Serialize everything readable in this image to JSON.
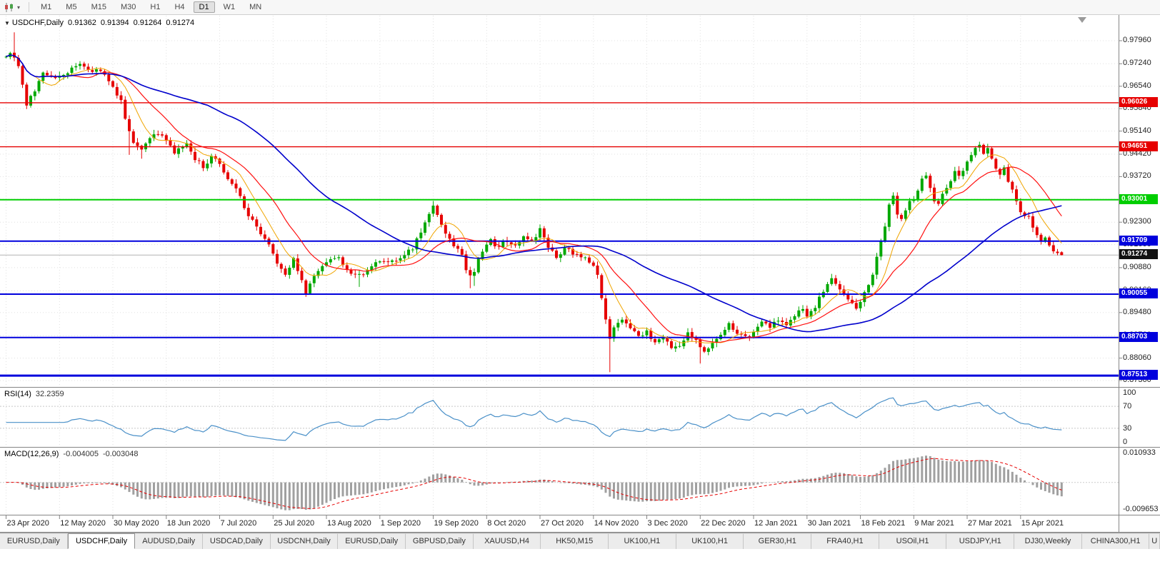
{
  "toolbar": {
    "timeframes": [
      "M1",
      "M5",
      "M15",
      "M30",
      "H1",
      "H4",
      "D1",
      "W1",
      "MN"
    ],
    "active_timeframe": "D1"
  },
  "chart": {
    "header_symbol": "USDCHF,Daily",
    "open": "0.91362",
    "high": "0.91394",
    "low": "0.91264",
    "close": "0.91274"
  },
  "colors": {
    "candle_up": "#00a800",
    "candle_down": "#e60000",
    "ma_fast": "#f0a500",
    "ma_mid": "#ff1010",
    "ma_slow": "#0000cc",
    "level_red": "#e60000",
    "level_green": "#00ce00",
    "level_blue": "#0000dd",
    "current_price_badge": "#111111",
    "current_price_line": "#b4b4b4",
    "grid": "#e0e0e0",
    "panel_border": "#858585",
    "rsi_line": "#4a90c8",
    "rsi_levels": "#c8c8c8",
    "macd_hist": "#a0a0a0",
    "macd_signal": "#e60000"
  },
  "chart_data": {
    "type": "candlestick",
    "symbol": "USDCHF",
    "timeframe": "Daily",
    "candle_count": 258,
    "ylim": [
      0.8716,
      0.98762
    ],
    "y_gridline_labels": [
      "0.97960",
      "0.97240",
      "0.96540",
      "0.95840",
      "0.95140",
      "0.94420",
      "0.93720",
      "0.93020",
      "0.92300",
      "0.91600",
      "0.90880",
      "0.90160",
      "0.89480",
      "0.88760",
      "0.88060",
      "0.87360"
    ],
    "x_tick_labels": [
      "23 Apr 2020",
      "12 May 2020",
      "30 May 2020",
      "18 Jun 2020",
      "7 Jul 2020",
      "25 Jul 2020",
      "13 Aug 2020",
      "1 Sep 2020",
      "19 Sep 2020",
      "8 Oct 2020",
      "27 Oct 2020",
      "14 Nov 2020",
      "3 Dec 2020",
      "22 Dec 2020",
      "12 Jan 2021",
      "30 Jan 2021",
      "18 Feb 2021",
      "9 Mar 2021",
      "27 Mar 2021",
      "15 Apr 2021"
    ],
    "x_tick_every": 13,
    "close_anchors": [
      [
        0,
        0.9745
      ],
      [
        1,
        0.9765
      ],
      [
        3,
        0.972
      ],
      [
        5,
        0.9595
      ],
      [
        7,
        0.9645
      ],
      [
        9,
        0.97
      ],
      [
        12,
        0.9685
      ],
      [
        15,
        0.97
      ],
      [
        18,
        0.972
      ],
      [
        21,
        0.9705
      ],
      [
        24,
        0.969
      ],
      [
        26,
        0.9645
      ],
      [
        28,
        0.9605
      ],
      [
        29,
        0.956
      ],
      [
        31,
        0.948
      ],
      [
        33,
        0.9455
      ],
      [
        35,
        0.949
      ],
      [
        37,
        0.951
      ],
      [
        39,
        0.948
      ],
      [
        41,
        0.945
      ],
      [
        44,
        0.947
      ],
      [
        46,
        0.943
      ],
      [
        48,
        0.94
      ],
      [
        50,
        0.943
      ],
      [
        52,
        0.9415
      ],
      [
        54,
        0.937
      ],
      [
        56,
        0.933
      ],
      [
        58,
        0.928
      ],
      [
        60,
        0.923
      ],
      [
        62,
        0.919
      ],
      [
        64,
        0.916
      ],
      [
        66,
        0.91
      ],
      [
        68,
        0.907
      ],
      [
        70,
        0.911
      ],
      [
        72,
        0.905
      ],
      [
        73,
        0.901
      ],
      [
        75,
        0.907
      ],
      [
        78,
        0.91
      ],
      [
        81,
        0.912
      ],
      [
        83,
        0.908
      ],
      [
        85,
        0.906
      ],
      [
        88,
        0.908
      ],
      [
        91,
        0.911
      ],
      [
        94,
        0.9105
      ],
      [
        97,
        0.9125
      ],
      [
        99,
        0.915
      ],
      [
        101,
        0.92
      ],
      [
        103,
        0.9262
      ],
      [
        104,
        0.9285
      ],
      [
        105,
        0.926
      ],
      [
        107,
        0.919
      ],
      [
        109,
        0.916
      ],
      [
        111,
        0.913
      ],
      [
        112,
        0.908
      ],
      [
        113,
        0.906
      ],
      [
        114,
        0.907
      ],
      [
        115,
        0.911
      ],
      [
        116,
        0.914
      ],
      [
        118,
        0.917
      ],
      [
        120,
        0.9155
      ],
      [
        122,
        0.9175
      ],
      [
        124,
        0.916
      ],
      [
        126,
        0.918
      ],
      [
        128,
        0.9165
      ],
      [
        130,
        0.9205
      ],
      [
        132,
        0.915
      ],
      [
        134,
        0.912
      ],
      [
        136,
        0.915
      ],
      [
        138,
        0.9135
      ],
      [
        140,
        0.912
      ],
      [
        142,
        0.911
      ],
      [
        143,
        0.91
      ],
      [
        144,
        0.906
      ],
      [
        145,
        0.9
      ],
      [
        146,
        0.893
      ],
      [
        147,
        0.887
      ],
      [
        148,
        0.89
      ],
      [
        150,
        0.893
      ],
      [
        152,
        0.89
      ],
      [
        154,
        0.887
      ],
      [
        156,
        0.889
      ],
      [
        158,
        0.885
      ],
      [
        160,
        0.887
      ],
      [
        162,
        0.883
      ],
      [
        164,
        0.885
      ],
      [
        166,
        0.888
      ],
      [
        168,
        0.886
      ],
      [
        170,
        0.882
      ],
      [
        172,
        0.885
      ],
      [
        174,
        0.888
      ],
      [
        176,
        0.891
      ],
      [
        178,
        0.889
      ],
      [
        180,
        0.887
      ],
      [
        182,
        0.889
      ],
      [
        184,
        0.892
      ],
      [
        186,
        0.89
      ],
      [
        188,
        0.893
      ],
      [
        190,
        0.891
      ],
      [
        192,
        0.894
      ],
      [
        194,
        0.896
      ],
      [
        195,
        0.8935
      ],
      [
        197,
        0.897
      ],
      [
        199,
        0.901
      ],
      [
        201,
        0.905
      ],
      [
        203,
        0.902
      ],
      [
        205,
        0.899
      ],
      [
        207,
        0.8965
      ],
      [
        208,
        0.8985
      ],
      [
        209,
        0.9005
      ],
      [
        210,
        0.903
      ],
      [
        211,
        0.907
      ],
      [
        212,
        0.912
      ],
      [
        213,
        0.917
      ],
      [
        214,
        0.922
      ],
      [
        215,
        0.929
      ],
      [
        216,
        0.931
      ],
      [
        217,
        0.926
      ],
      [
        218,
        0.924
      ],
      [
        219,
        0.927
      ],
      [
        220,
        0.929
      ],
      [
        221,
        0.93
      ],
      [
        222,
        0.933
      ],
      [
        223,
        0.936
      ],
      [
        224,
        0.9375
      ],
      [
        225,
        0.934
      ],
      [
        226,
        0.93
      ],
      [
        227,
        0.929
      ],
      [
        228,
        0.9315
      ],
      [
        229,
        0.933
      ],
      [
        230,
        0.9355
      ],
      [
        231,
        0.9385
      ],
      [
        232,
        0.937
      ],
      [
        233,
        0.9395
      ],
      [
        234,
        0.942
      ],
      [
        235,
        0.944
      ],
      [
        236,
        0.9455
      ],
      [
        237,
        0.9465
      ],
      [
        238,
        0.9445
      ],
      [
        239,
        0.9458
      ],
      [
        240,
        0.943
      ],
      [
        241,
        0.94
      ],
      [
        242,
        0.938
      ],
      [
        243,
        0.9398
      ],
      [
        244,
        0.936
      ],
      [
        245,
        0.933
      ],
      [
        246,
        0.93
      ],
      [
        247,
        0.926
      ],
      [
        249,
        0.9245
      ],
      [
        250,
        0.922
      ],
      [
        251,
        0.9195
      ],
      [
        252,
        0.917
      ],
      [
        253,
        0.918
      ],
      [
        254,
        0.9155
      ],
      [
        255,
        0.914
      ],
      [
        256,
        0.9133
      ],
      [
        257,
        0.9127
      ]
    ],
    "wick_overrides": [
      [
        2,
        "high",
        0.9822
      ],
      [
        5,
        "low",
        0.9583
      ],
      [
        30,
        "low",
        0.944
      ],
      [
        33,
        "low",
        0.9428
      ],
      [
        73,
        "low",
        0.8997
      ],
      [
        86,
        "low",
        0.9028
      ],
      [
        104,
        "high",
        0.9296
      ],
      [
        113,
        "low",
        0.9024
      ],
      [
        114,
        "low",
        0.9031
      ],
      [
        130,
        "high",
        0.9222
      ],
      [
        147,
        "low",
        0.8762
      ],
      [
        169,
        "low",
        0.8789
      ],
      [
        224,
        "high",
        0.9386
      ],
      [
        237,
        "high",
        0.9481
      ]
    ],
    "last_candle": {
      "o": 0.91362,
      "h": 0.91394,
      "l": 0.91264,
      "c": 0.91274
    },
    "levels": [
      {
        "price": 0.96026,
        "label": "0.96026",
        "color": "red",
        "weight": 1.4
      },
      {
        "price": 0.94651,
        "label": "0.94651",
        "color": "red",
        "weight": 1.4
      },
      {
        "price": 0.93001,
        "label": "0.93001",
        "color": "green",
        "weight": 2
      },
      {
        "price": 0.91709,
        "label": "0.91709",
        "color": "blue",
        "weight": 2
      },
      {
        "price": 0.90055,
        "label": "0.90055",
        "color": "blue",
        "weight": 2
      },
      {
        "price": 0.88703,
        "label": "0.88703",
        "color": "blue",
        "weight": 2
      },
      {
        "price": 0.87513,
        "label": "0.87513",
        "color": "blue",
        "weight": 3
      }
    ],
    "current_price": {
      "price": 0.91274,
      "label": "0.91274"
    },
    "moving_averages": [
      {
        "name": "fast",
        "period": 8,
        "color_key": "ma_fast",
        "width": 1
      },
      {
        "name": "mid",
        "period": 17,
        "color_key": "ma_mid",
        "width": 1.2
      },
      {
        "name": "slow",
        "period": 50,
        "color_key": "ma_slow",
        "width": 1.6
      }
    ],
    "indicators": {
      "rsi": {
        "label": "RSI(14)",
        "period": 14,
        "value_display": "32.2359",
        "axis_labels": [
          "100",
          "70",
          "30",
          "0"
        ],
        "axis_values": [
          100,
          70,
          30,
          0
        ],
        "levels": [
          70,
          30
        ]
      },
      "macd": {
        "label": "MACD(12,26,9)",
        "fast": 12,
        "slow": 26,
        "signal": 9,
        "value_display": "-0.004005",
        "signal_display": "-0.003048",
        "axis_labels": [
          "0.010933",
          "-0.009653"
        ],
        "axis_values": [
          0.010933,
          -0.009653
        ]
      }
    }
  },
  "bottom_tabs": [
    {
      "label": "EURUSD,Daily",
      "active": false
    },
    {
      "label": "USDCHF,Daily",
      "active": true
    },
    {
      "label": "AUDUSD,Daily",
      "active": false
    },
    {
      "label": "USDCAD,Daily",
      "active": false
    },
    {
      "label": "USDCNH,Daily",
      "active": false
    },
    {
      "label": "EURUSD,Daily",
      "active": false
    },
    {
      "label": "GBPUSD,Daily",
      "active": false
    },
    {
      "label": "XAUUSD,H4",
      "active": false
    },
    {
      "label": "HK50,M15",
      "active": false
    },
    {
      "label": "UK100,H1",
      "active": false
    },
    {
      "label": "UK100,H1",
      "active": false
    },
    {
      "label": "GER30,H1",
      "active": false
    },
    {
      "label": "FRA40,H1",
      "active": false
    },
    {
      "label": "USOil,H1",
      "active": false
    },
    {
      "label": "USDJPY,H1",
      "active": false
    },
    {
      "label": "DJ30,Weekly",
      "active": false
    },
    {
      "label": "CHINA300,H1",
      "active": false
    },
    {
      "label": "U",
      "active": false,
      "clipped": true
    }
  ]
}
